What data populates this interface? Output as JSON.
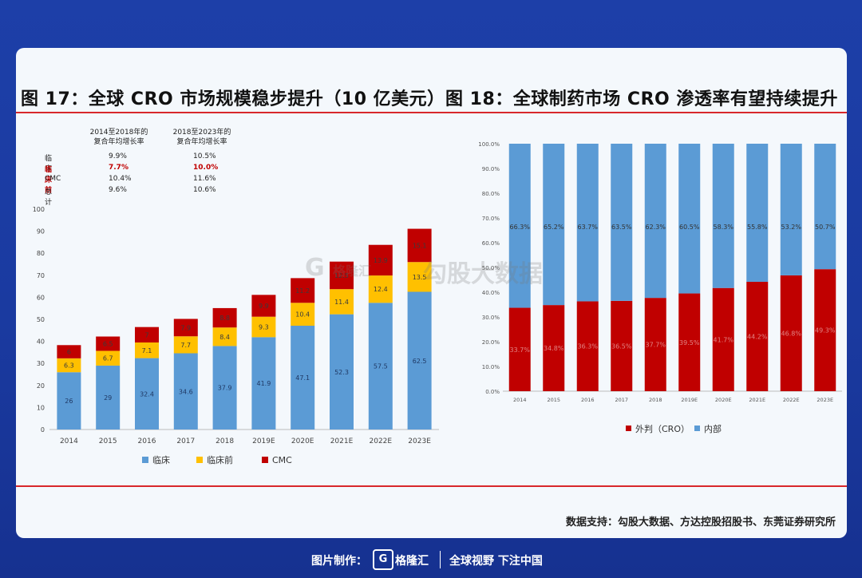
{
  "fig17": {
    "title": "图 17：全球 CRO 市场规模稳步提升（10 亿美元）",
    "table": {
      "col1": [
        "2014至2018年的",
        "复合年均增长率"
      ],
      "col2": [
        "2018至2023年的",
        "复合年均增长率"
      ],
      "rows": [
        {
          "label": "临床",
          "v1": "9.9%",
          "v2": "10.5%",
          "hl": false
        },
        {
          "label": "临床前",
          "v1": "7.7%",
          "v2": "10.0%",
          "hl": true
        },
        {
          "label": "CMC",
          "v1": "10.4%",
          "v2": "11.6%",
          "hl": false
        },
        {
          "label": "总计",
          "v1": "9.6%",
          "v2": "10.6%",
          "hl": false
        }
      ]
    }
  },
  "fig18": {
    "title": "图 18：全球制药市场 CRO 渗透率有望持续提升"
  },
  "watermark": {
    "icon": "G",
    "text1": "格隆汇",
    "text2": "勾股大数据"
  },
  "source": "数据支持：勾股大数据、方达控股招股书、东莞证券研究所",
  "footer": {
    "made_by": "图片制作：",
    "logo_icon": "G",
    "logo_text": "格隆汇",
    "slogan": "全球视野 下注中国"
  },
  "colors": {
    "clinical": "#5b9bd5",
    "preclinical": "#ffc000",
    "cmc": "#c00000",
    "external": "#c00000",
    "internal": "#5b9bd5"
  },
  "chart_data": [
    {
      "type": "bar",
      "stacked": true,
      "categories": [
        "2014",
        "2015",
        "2016",
        "2017",
        "2018",
        "2019E",
        "2020E",
        "2021E",
        "2022E",
        "2023E"
      ],
      "series": [
        {
          "name": "临床",
          "values": [
            26,
            29,
            32.4,
            34.6,
            37.9,
            41.9,
            47.1,
            52.3,
            57.5,
            62.5
          ]
        },
        {
          "name": "临床前",
          "values": [
            6.3,
            6.7,
            7.1,
            7.7,
            8.4,
            9.3,
            10.4,
            11.4,
            12.4,
            13.5
          ]
        },
        {
          "name": "CMC",
          "values": [
            6,
            6.5,
            7,
            7.9,
            8.8,
            9.9,
            11.2,
            12.5,
            13.9,
            15.1
          ]
        }
      ],
      "yticks": [
        0,
        10,
        20,
        30,
        40,
        50,
        60,
        70,
        80,
        90,
        100
      ],
      "ylim": [
        0,
        100
      ],
      "legend": "bottom"
    },
    {
      "type": "bar",
      "stacked": true,
      "percent": true,
      "categories": [
        "2014",
        "2015",
        "2016",
        "2017",
        "2018",
        "2019E",
        "2020E",
        "2021E",
        "2022E",
        "2023E"
      ],
      "series": [
        {
          "name": "外判（CRO）",
          "values": [
            33.7,
            34.8,
            36.3,
            36.5,
            37.7,
            39.5,
            41.7,
            44.2,
            46.8,
            49.3
          ]
        },
        {
          "name": "内部",
          "values": [
            66.3,
            65.2,
            63.7,
            63.5,
            62.3,
            60.5,
            58.3,
            55.8,
            53.2,
            50.7
          ]
        }
      ],
      "yticks": [
        "0.0%",
        "10.0%",
        "20.0%",
        "30.0%",
        "40.0%",
        "50.0%",
        "60.0%",
        "70.0%",
        "80.0%",
        "90.0%",
        "100.0%"
      ],
      "ylim": [
        0,
        100
      ],
      "legend": "bottom"
    }
  ]
}
